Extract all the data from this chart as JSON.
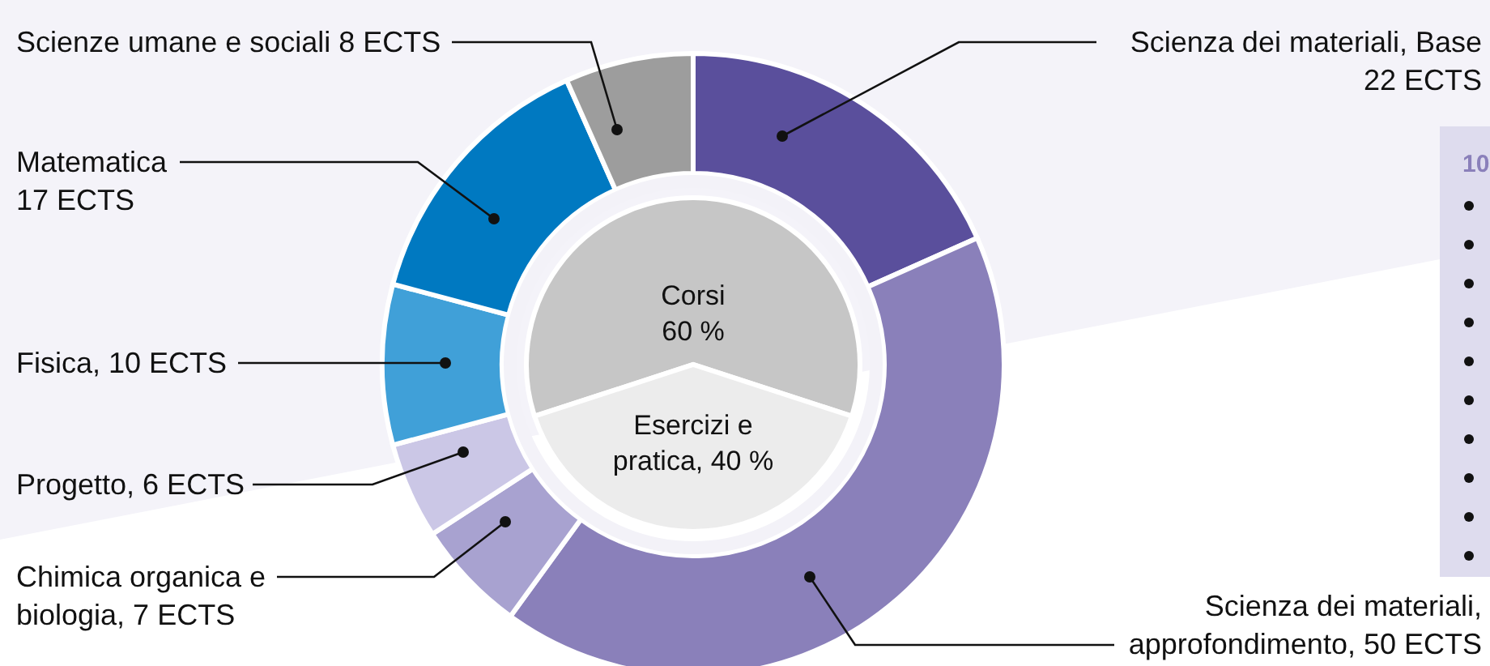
{
  "chart_data": [
    {
      "type": "donut",
      "categories": [
        "Scienza dei materiali, Base\n22 ECTS",
        "Scienza dei materiali,\napprofondimento, 50 ECTS",
        "Chimica organica e\nbiologia, 7 ECTS",
        "Progetto, 6 ECTS",
        "Fisica, 10 ECTS",
        "Matematica\n17 ECTS",
        "Scienze umane e sociali 8 ECTS"
      ],
      "values": [
        22,
        50,
        7,
        6,
        10,
        17,
        8
      ],
      "colors": [
        "#5a4f9c",
        "#8a80ba",
        "#a8a2d0",
        "#cbc7e6",
        "#40a0d8",
        "#0079c1",
        "#9d9d9d"
      ],
      "annotations": [
        "10"
      ]
    },
    {
      "type": "pie",
      "categories": [
        "Corsi\n60 %",
        "Esercizi e\npratica, 40 %"
      ],
      "values": [
        60,
        40
      ],
      "colors": [
        "#c6c6c6",
        "#ececec"
      ]
    }
  ]
}
